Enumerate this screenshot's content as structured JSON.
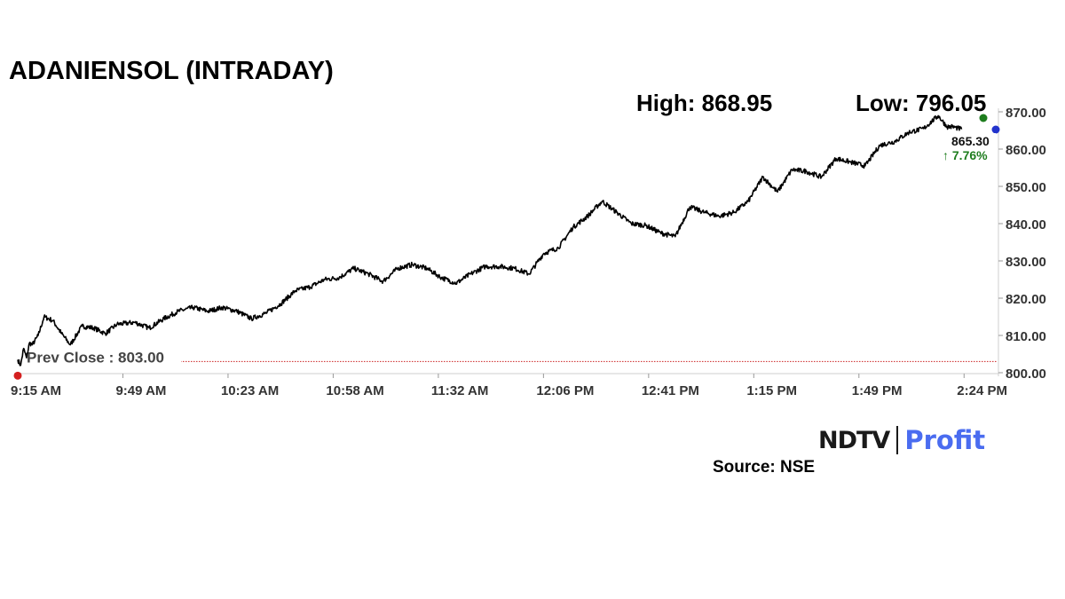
{
  "header": {
    "title": "ADANIENSOL (INTRADAY)",
    "high_text": "High: 868.95",
    "low_text": "Low: 796.05"
  },
  "chart_data": {
    "type": "line",
    "title": "ADANIENSOL (INTRADAY)",
    "xlabel": "",
    "ylabel": "",
    "x_ticks": [
      "9:15 AM",
      "9:49 AM",
      "10:23 AM",
      "10:58 AM",
      "11:32 AM",
      "12:06 PM",
      "12:41 PM",
      "1:15 PM",
      "1:49 PM",
      "2:24 PM"
    ],
    "y_ticks": [
      "870.00",
      "860.00",
      "850.00",
      "840.00",
      "830.00",
      "820.00",
      "810.00",
      "800.00"
    ],
    "ylim": [
      800,
      870
    ],
    "xlim_minutes_after_915": [
      0,
      335
    ],
    "grid": false,
    "series": [
      {
        "x_minutes_after_915": [
          0,
          1,
          2,
          3,
          4,
          5,
          7,
          9,
          12,
          15,
          18,
          22,
          26,
          30,
          34,
          40,
          45,
          50,
          55,
          60,
          65,
          70,
          75,
          80,
          85,
          90,
          95,
          100,
          105,
          110,
          115,
          120,
          125,
          130,
          135,
          140,
          145,
          150,
          155,
          160,
          165,
          170,
          175,
          180,
          185,
          190,
          195,
          200,
          205,
          210,
          215,
          220,
          225,
          230,
          235,
          240,
          245,
          250,
          255,
          260,
          265,
          270,
          275,
          280,
          285,
          290,
          295,
          300,
          305,
          310,
          315,
          318,
          320,
          323
        ],
        "values": [
          803.5,
          802.0,
          806.5,
          804.0,
          808.0,
          807.5,
          810.0,
          815.0,
          814.0,
          810.5,
          807.5,
          812.5,
          812.0,
          810.5,
          813.0,
          813.5,
          812.0,
          814.5,
          816.5,
          817.5,
          816.5,
          817.5,
          816.5,
          814.5,
          816.0,
          818.5,
          822.0,
          823.0,
          825.0,
          825.5,
          828.0,
          826.5,
          824.5,
          828.0,
          829.0,
          828.0,
          825.5,
          824.0,
          826.5,
          828.5,
          828.5,
          828.0,
          826.5,
          832.0,
          833.5,
          839.0,
          842.0,
          846.0,
          843.0,
          840.0,
          839.5,
          837.5,
          836.5,
          844.5,
          843.0,
          842.0,
          843.0,
          846.0,
          852.5,
          848.5,
          854.5,
          854.0,
          852.5,
          857.5,
          856.5,
          855.5,
          861.0,
          862.0,
          864.5,
          865.5,
          868.95,
          866.0,
          866.0,
          865.3
        ]
      }
    ],
    "reference_line": {
      "label": "Prev Close : 803.00",
      "value": 803.0,
      "color": "#cc2222"
    },
    "last_price": {
      "value": "865.30",
      "change": "↑ 7.76%",
      "change_color": "#1e7d1e"
    },
    "markers": {
      "open_color": "#d42020",
      "high_color": "#1e7d1e",
      "last_color": "#2233cc"
    },
    "line_color": "#000000"
  },
  "branding": {
    "logo_ndtv": "NDTV",
    "logo_profit": "Profit",
    "source": "Source: NSE"
  }
}
